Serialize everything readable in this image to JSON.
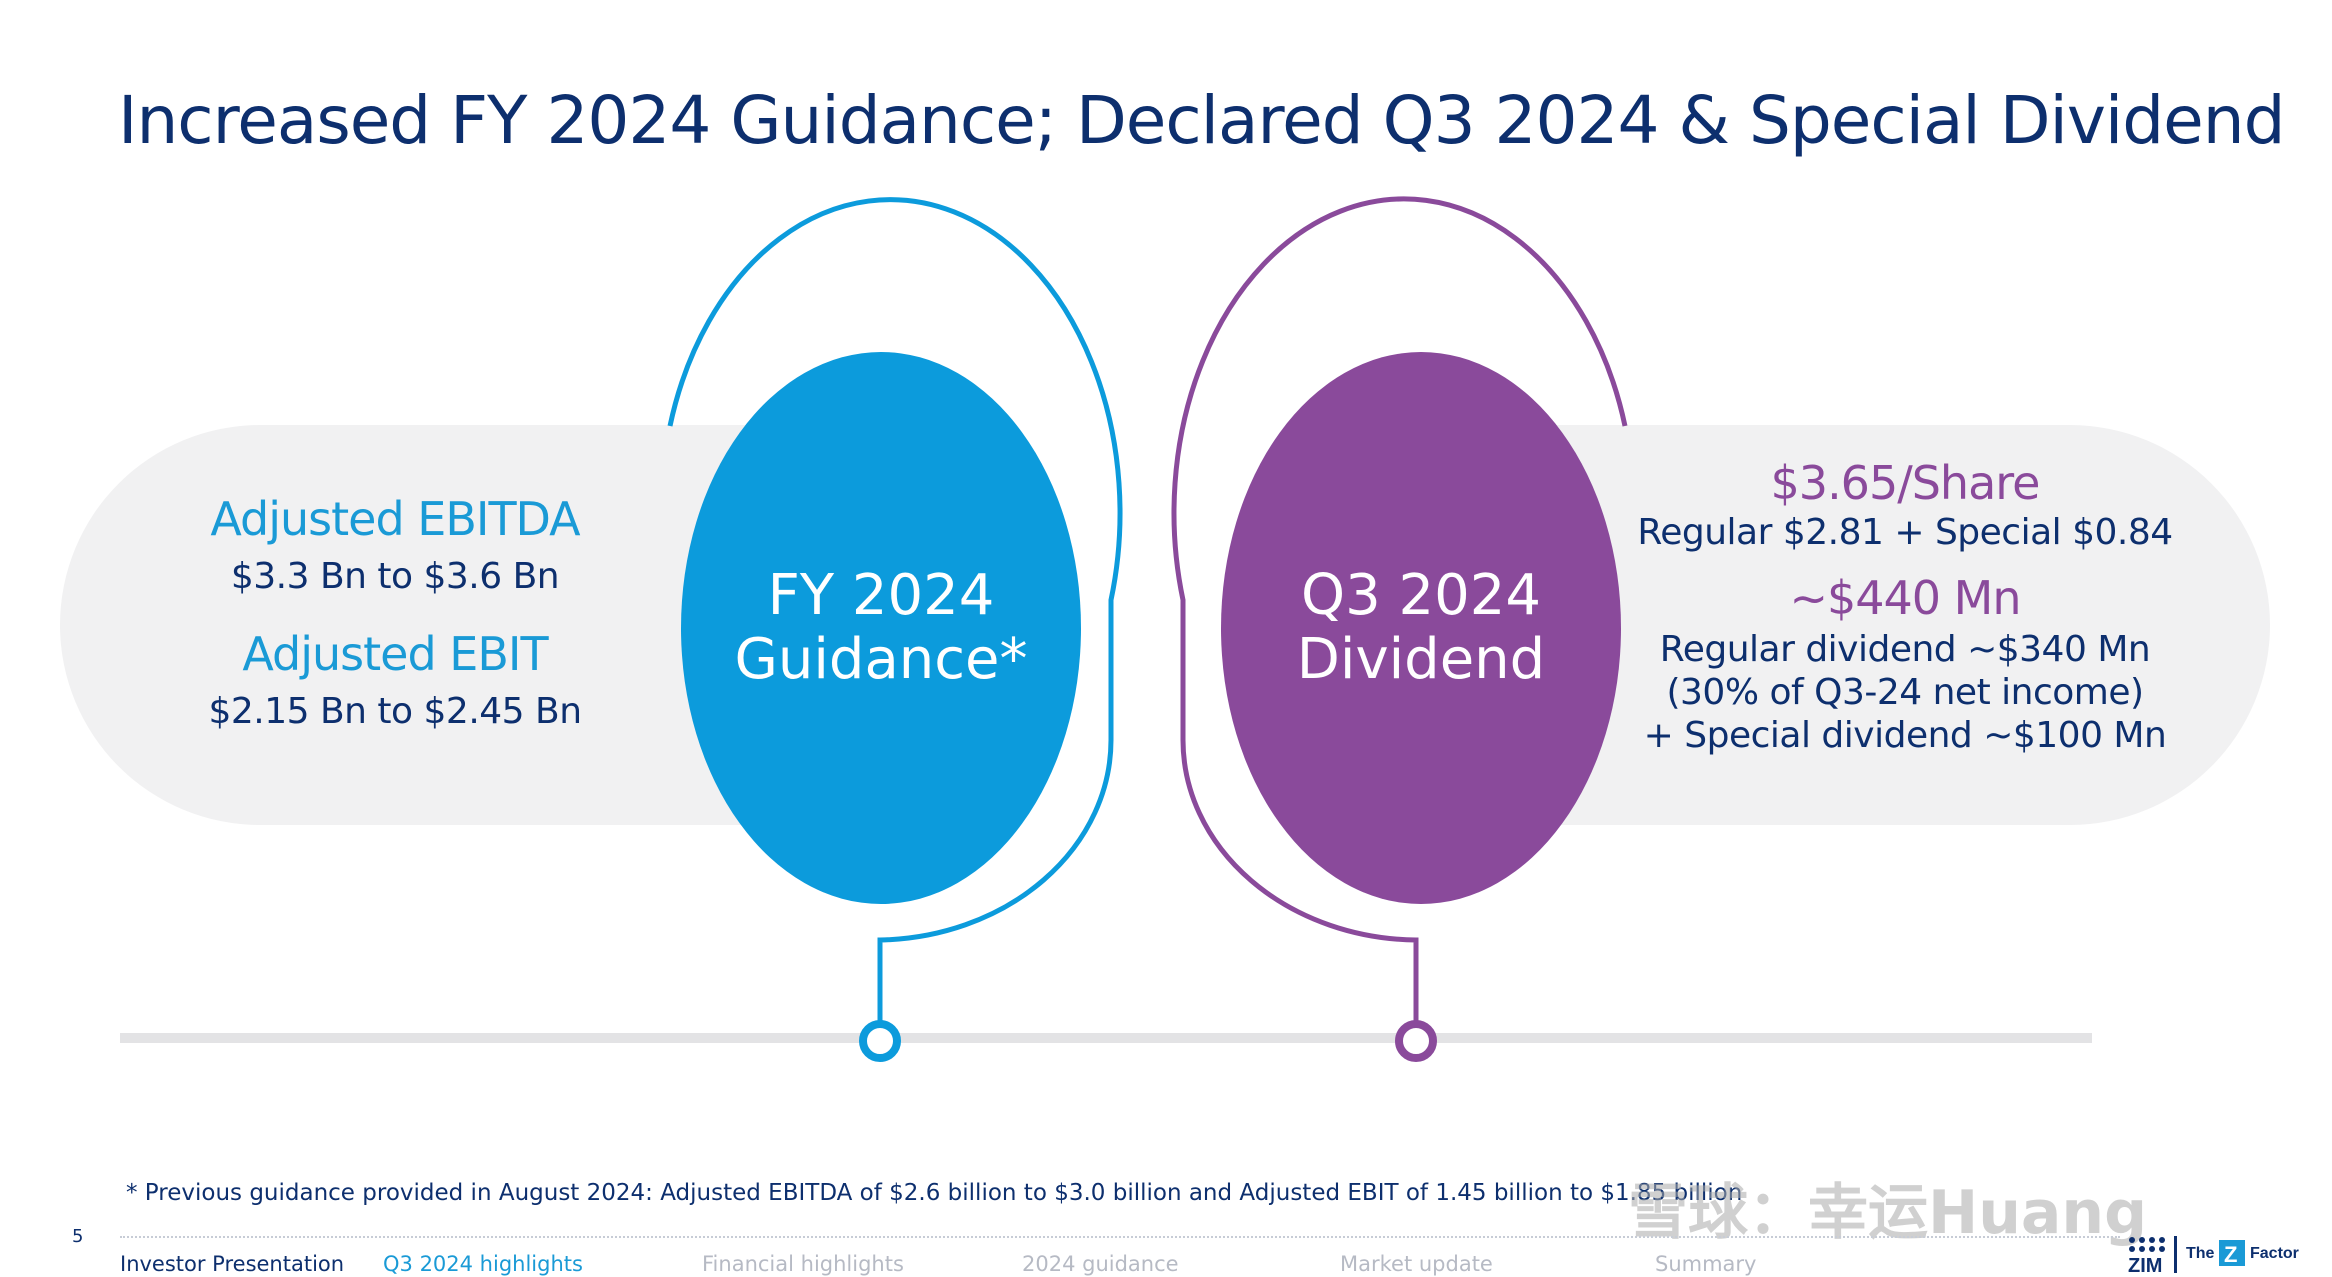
{
  "title": "Increased FY 2024 Guidance; Declared Q3 2024 & Special Dividend",
  "guidance": {
    "circle_line1": "FY 2024",
    "circle_line2": "Guidance*",
    "ebitda_label": "Adjusted EBITDA",
    "ebitda_value": "$3.3 Bn to $3.6 Bn",
    "ebit_label": "Adjusted EBIT",
    "ebit_value": "$2.15 Bn to $2.45 Bn"
  },
  "dividend": {
    "circle_line1": "Q3 2024",
    "circle_line2": "Dividend",
    "per_share": "$3.65/Share",
    "per_share_detail": "Regular $2.81 + Special $0.84",
    "total": "~$440 Mn",
    "line1": "Regular dividend ~$340 Mn",
    "line2": "(30% of Q3-24 net income)",
    "line3": "+ Special dividend ~$100 Mn"
  },
  "footnote": "* Previous guidance provided in August 2024: Adjusted EBITDA of $2.6 billion to $3.0 billion and Adjusted EBIT of 1.45 billion to $1.85 billion",
  "page_number": "5",
  "nav": [
    "Investor Presentation",
    "Q3 2024 highlights",
    "Financial highlights",
    "2024 guidance",
    "Market update",
    "Summary"
  ],
  "watermark": "雪球：幸运Huang",
  "logo": {
    "brand": "ZIM",
    "tagline_the": "The",
    "tagline_z": "Z",
    "tagline_factor": "Factor"
  },
  "colors": {
    "navy": "#0d2f6e",
    "blue": "#0c9bdc",
    "purple": "#8a4a9b",
    "pill": "#f1f1f2"
  }
}
